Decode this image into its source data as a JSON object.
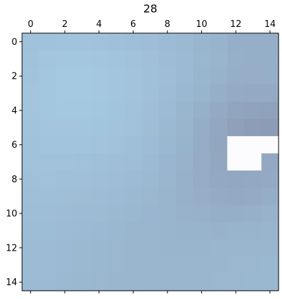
{
  "chart_data": {
    "type": "heatmap",
    "title": "28",
    "x_tick_labels": [
      "0",
      "2",
      "4",
      "6",
      "8",
      "10",
      "12",
      "14"
    ],
    "y_tick_labels": [
      "0",
      "2",
      "4",
      "6",
      "8",
      "10",
      "12",
      "14"
    ],
    "rows": 15,
    "cols": 15,
    "xlim": [
      -0.5,
      14.5
    ],
    "ylim": [
      14.5,
      -0.5
    ],
    "x_ticks_position": "top",
    "grid": false,
    "legend": "none",
    "colors": {
      "light": "#a6cce4",
      "dark": "#8c9cb6",
      "masked": "#fcfcfe"
    },
    "values": [
      [
        0.22,
        0.2,
        0.19,
        0.19,
        0.21,
        0.24,
        0.27,
        0.31,
        0.35,
        0.4,
        0.46,
        0.52,
        0.6,
        0.62,
        0.62
      ],
      [
        0.2,
        0.12,
        0.1,
        0.1,
        0.12,
        0.15,
        0.2,
        0.26,
        0.32,
        0.38,
        0.44,
        0.5,
        0.58,
        0.6,
        0.6
      ],
      [
        0.18,
        0.1,
        0.06,
        0.06,
        0.08,
        0.12,
        0.18,
        0.24,
        0.31,
        0.38,
        0.46,
        0.54,
        0.6,
        0.62,
        0.62
      ],
      [
        0.17,
        0.1,
        0.06,
        0.06,
        0.08,
        0.12,
        0.18,
        0.25,
        0.33,
        0.41,
        0.5,
        0.6,
        0.68,
        0.7,
        0.7
      ],
      [
        0.17,
        0.11,
        0.08,
        0.08,
        0.1,
        0.14,
        0.2,
        0.27,
        0.36,
        0.46,
        0.58,
        0.7,
        0.82,
        0.86,
        0.88
      ],
      [
        0.18,
        0.13,
        0.12,
        0.12,
        0.14,
        0.18,
        0.23,
        0.3,
        0.39,
        0.5,
        0.64,
        0.78,
        0.92,
        0.98,
        1.0
      ],
      [
        0.2,
        0.16,
        0.16,
        0.17,
        0.19,
        0.23,
        0.27,
        0.33,
        0.42,
        0.53,
        0.66,
        0.8,
        null,
        null,
        null
      ],
      [
        0.22,
        0.2,
        0.2,
        0.22,
        0.24,
        0.27,
        0.31,
        0.37,
        0.45,
        0.55,
        0.67,
        0.78,
        null,
        null,
        0.72
      ],
      [
        0.24,
        0.23,
        0.24,
        0.26,
        0.28,
        0.31,
        0.35,
        0.4,
        0.47,
        0.56,
        0.66,
        0.74,
        0.76,
        0.74,
        0.7
      ],
      [
        0.27,
        0.27,
        0.28,
        0.3,
        0.32,
        0.35,
        0.39,
        0.43,
        0.49,
        0.56,
        0.62,
        0.68,
        0.7,
        0.68,
        0.64
      ],
      [
        0.3,
        0.3,
        0.32,
        0.34,
        0.36,
        0.39,
        0.42,
        0.46,
        0.5,
        0.54,
        0.57,
        0.6,
        0.6,
        0.58,
        0.55
      ],
      [
        0.33,
        0.33,
        0.35,
        0.37,
        0.39,
        0.42,
        0.45,
        0.48,
        0.5,
        0.52,
        0.53,
        0.54,
        0.53,
        0.52,
        0.5
      ],
      [
        0.35,
        0.35,
        0.37,
        0.39,
        0.41,
        0.44,
        0.46,
        0.48,
        0.49,
        0.49,
        0.49,
        0.48,
        0.47,
        0.46,
        0.45
      ],
      [
        0.36,
        0.36,
        0.38,
        0.4,
        0.42,
        0.44,
        0.46,
        0.47,
        0.47,
        0.47,
        0.46,
        0.45,
        0.44,
        0.43,
        0.42
      ],
      [
        0.37,
        0.37,
        0.39,
        0.41,
        0.43,
        0.45,
        0.46,
        0.47,
        0.47,
        0.46,
        0.45,
        0.44,
        0.43,
        0.42,
        0.42
      ]
    ]
  }
}
